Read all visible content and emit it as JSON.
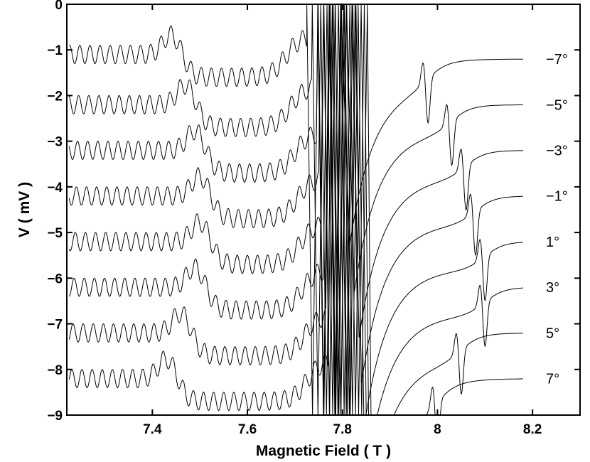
{
  "chart_data": {
    "type": "line",
    "xlabel": "Magnetic Field ( T )",
    "ylabel": "V ( mV )",
    "xlim": [
      7.22,
      8.3
    ],
    "ylim": [
      -9,
      0
    ],
    "xticks": [
      7.4,
      7.6,
      7.8,
      8,
      8.2
    ],
    "xtick_labels": [
      "7.4",
      "7.6",
      "7.8",
      "8",
      "8.2"
    ],
    "yticks": [
      0,
      -1,
      -2,
      -3,
      -4,
      -5,
      -6,
      -7,
      -8,
      -9
    ],
    "ytick_labels": [
      "0",
      "−1",
      "−2",
      "−3",
      "−4",
      "−5",
      "−6",
      "−7",
      "−8",
      "−9"
    ],
    "grid": false,
    "legend": "trace labels at right end of each curve",
    "series": [
      {
        "name": "−7°",
        "start_v": -1.1,
        "jump_x": 7.74,
        "step_x": 7.47,
        "resonance_x": 7.98,
        "end_v": -1.2
      },
      {
        "name": "−5°",
        "start_v": -2.2,
        "jump_x": 7.75,
        "step_x": 7.5,
        "resonance_x": 8.03,
        "end_v": -2.2
      },
      {
        "name": "−3°",
        "start_v": -3.2,
        "jump_x": 7.76,
        "step_x": 7.52,
        "resonance_x": 8.06,
        "end_v": -3.2
      },
      {
        "name": "−1°",
        "start_v": -4.2,
        "jump_x": 7.765,
        "step_x": 7.53,
        "resonance_x": 8.08,
        "end_v": -4.2
      },
      {
        "name": "1°",
        "start_v": -5.2,
        "jump_x": 7.77,
        "step_x": 7.53,
        "resonance_x": 8.1,
        "end_v": -5.2
      },
      {
        "name": "3°",
        "start_v": -6.2,
        "jump_x": 7.775,
        "step_x": 7.52,
        "resonance_x": 8.1,
        "end_v": -6.2
      },
      {
        "name": "5°",
        "start_v": -7.2,
        "jump_x": 7.78,
        "step_x": 7.49,
        "resonance_x": 8.05,
        "end_v": -7.2
      },
      {
        "name": "7°",
        "start_v": -8.2,
        "jump_x": 7.785,
        "step_x": 7.46,
        "resonance_x": 8.0,
        "end_v": -8.2
      }
    ]
  }
}
